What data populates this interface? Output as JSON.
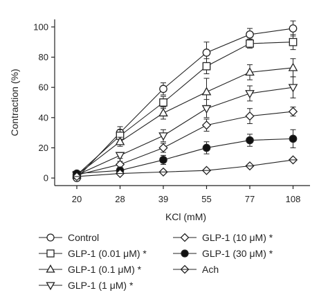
{
  "chart_data": {
    "type": "line",
    "title": "",
    "xlabel": "KCl (mM)",
    "ylabel": "Contraction (%)",
    "categories": [
      "20",
      "28",
      "39",
      "55",
      "77",
      "108"
    ],
    "yticks": [
      0,
      20,
      40,
      60,
      80,
      100
    ],
    "ylim": [
      -5,
      105
    ],
    "grid": false,
    "legend_position": "bottom",
    "series": [
      {
        "name": "Control",
        "marker": "circle-open",
        "values": [
          0,
          30,
          59,
          83,
          95,
          99
        ],
        "errors": [
          1,
          4,
          4,
          7,
          4,
          5
        ]
      },
      {
        "name": "GLP-1 (0.01 μM) *",
        "marker": "square-open",
        "values": [
          2,
          28,
          50,
          74,
          89,
          90
        ],
        "errors": [
          1,
          4,
          4,
          5,
          3,
          5
        ]
      },
      {
        "name": "GLP-1 (0.1 μM) *",
        "marker": "triangle-up-open",
        "values": [
          2,
          24,
          43,
          57,
          70,
          73
        ],
        "errors": [
          1,
          3,
          4,
          9,
          5,
          6
        ]
      },
      {
        "name": "GLP-1 (1 μM) *",
        "marker": "triangle-down-open",
        "values": [
          2,
          15,
          28,
          46,
          56,
          60
        ],
        "errors": [
          1,
          2,
          4,
          6,
          5,
          7
        ]
      },
      {
        "name": "GLP-1 (10 μM) *",
        "marker": "diamond-open",
        "values": [
          2,
          9,
          20,
          35,
          41,
          44
        ],
        "errors": [
          1,
          2,
          3,
          4,
          5,
          3
        ]
      },
      {
        "name": "GLP-1 (30 μM) *",
        "marker": "circle-filled",
        "values": [
          3,
          5,
          12,
          20,
          25,
          26
        ],
        "errors": [
          1,
          2,
          3,
          4,
          4,
          6
        ]
      },
      {
        "name": "Ach",
        "marker": "crossed-diamond",
        "values": [
          1,
          3,
          4,
          5,
          8,
          12
        ],
        "errors": [
          0.5,
          1,
          1,
          1,
          1,
          1
        ]
      }
    ]
  }
}
